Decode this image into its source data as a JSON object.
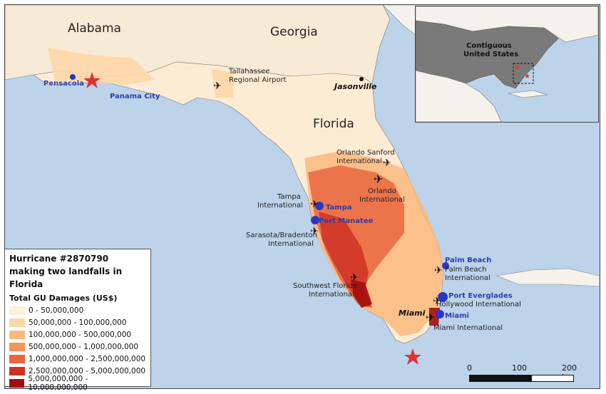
{
  "states": {
    "alabama": "Alabama",
    "georgia": "Georgia",
    "florida": "Florida"
  },
  "cities": {
    "jasonville": "Jasonville",
    "miami": "Miami"
  },
  "ports": {
    "pensacola": "Pensacola",
    "panama_city": "Panama City",
    "tampa": "Tampa",
    "port_manatee": "Port Manatee",
    "palm_beach": "Palm Beach",
    "port_everglades": "Port Everglades",
    "miami": "Miami"
  },
  "airports": {
    "tallahassee": [
      "Tallahassee",
      "Regional Airport"
    ],
    "orlando_sanford": [
      "Orlando Sanford",
      "International"
    ],
    "orlando": [
      "Orlando",
      "International"
    ],
    "tampa": [
      "Tampa",
      "International"
    ],
    "sarasota": [
      "Sarasota/Bradenton",
      "International"
    ],
    "southwest_florida": [
      "Southwest Florida",
      "International"
    ],
    "palm_beach": [
      "Palm Beach",
      "International"
    ],
    "hollywood": [
      "Hollywood International"
    ],
    "miami": [
      "Miami International"
    ]
  },
  "legend": {
    "title1": "Hurricane #2870790",
    "title2": "making two landfalls in Florida",
    "subtitle": "Total GU Damages (US$)",
    "classes": [
      {
        "label": "0 - 50,000,000",
        "color": "#fef0d9"
      },
      {
        "label": "50,000,000 - 100,000,000",
        "color": "#fdd7a8"
      },
      {
        "label": "100,000,000 - 500,000,000",
        "color": "#fcb97c"
      },
      {
        "label": "500,000,000 - 1,000,000,000",
        "color": "#f6945a"
      },
      {
        "label": "1,000,000,000 - 2,500,000,000",
        "color": "#e9663f"
      },
      {
        "label": "2,500,000,000 - 5,000,000,000",
        "color": "#cf3224"
      },
      {
        "label": "5,000,000,000 - 10,000,000,000",
        "color": "#a30c0c"
      }
    ]
  },
  "inset": {
    "label1": "Contiguous",
    "label2": "United States"
  },
  "scale": {
    "l0": "0",
    "l1": "100",
    "l2": "200 km"
  },
  "colors": {
    "water": "#bcd3ea",
    "land": "#f4f1ea",
    "port": "#2a36c8",
    "landfall": "#e03030"
  },
  "icons": {
    "airport": "airplane-icon",
    "port": "port-dot-icon",
    "landfall": "landfall-star-icon",
    "city": "city-dot-icon"
  }
}
